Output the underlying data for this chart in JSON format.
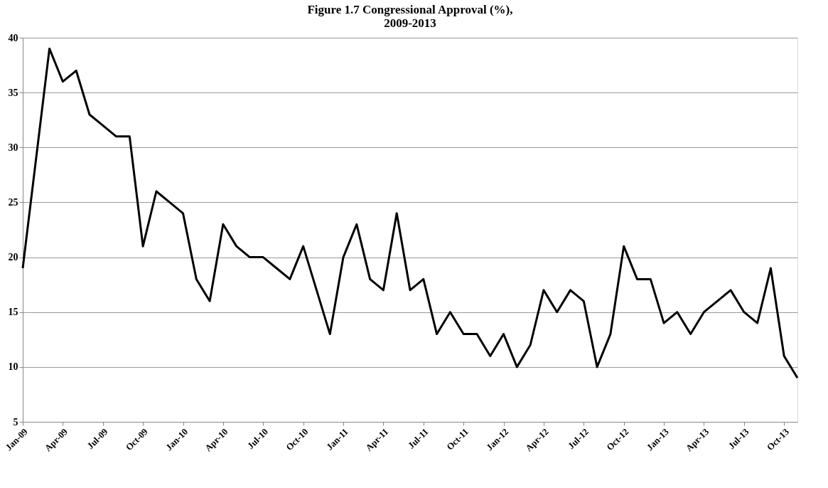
{
  "chart_data": {
    "type": "line",
    "title": "Figure 1.7 Congressional Approval (%), 2009-2013",
    "categories": [
      "Jan-09",
      null,
      null,
      "Apr-09",
      null,
      null,
      "Jul-09",
      null,
      null,
      "Oct-09",
      null,
      null,
      "Jan-10",
      null,
      null,
      "Apr-10",
      null,
      null,
      "Jul-10",
      null,
      null,
      "Oct-10",
      null,
      null,
      "Jan-11",
      null,
      null,
      "Apr-11",
      null,
      null,
      "Jul-11",
      null,
      null,
      "Oct-11",
      null,
      null,
      "Jan-12",
      null,
      null,
      "Apr-12",
      null,
      null,
      "Jul-12",
      null,
      null,
      "Oct-12",
      null,
      null,
      "Jan-13",
      null,
      null,
      "Apr-13",
      null,
      null,
      "Jul-13",
      null,
      null,
      "Oct-13",
      null
    ],
    "series": [
      {
        "color": "#000000",
        "values": [
          19,
          29,
          39,
          36,
          37,
          33,
          32,
          31,
          31,
          21,
          26,
          25,
          24,
          18,
          16,
          23,
          21,
          20,
          20,
          19,
          18,
          21,
          17,
          13,
          20,
          23,
          18,
          17,
          24,
          17,
          18,
          13,
          15,
          13,
          13,
          11,
          13,
          10,
          12,
          17,
          15,
          17,
          16,
          10,
          13,
          21,
          18,
          18,
          14,
          15,
          13,
          15,
          16,
          17,
          15,
          14,
          19,
          11,
          9
        ]
      }
    ],
    "ylim": [
      5,
      40
    ],
    "yticks": [
      5,
      10,
      15,
      20,
      25,
      30,
      35,
      40
    ],
    "grid": "y",
    "line_style": "solid",
    "marker": "none"
  }
}
